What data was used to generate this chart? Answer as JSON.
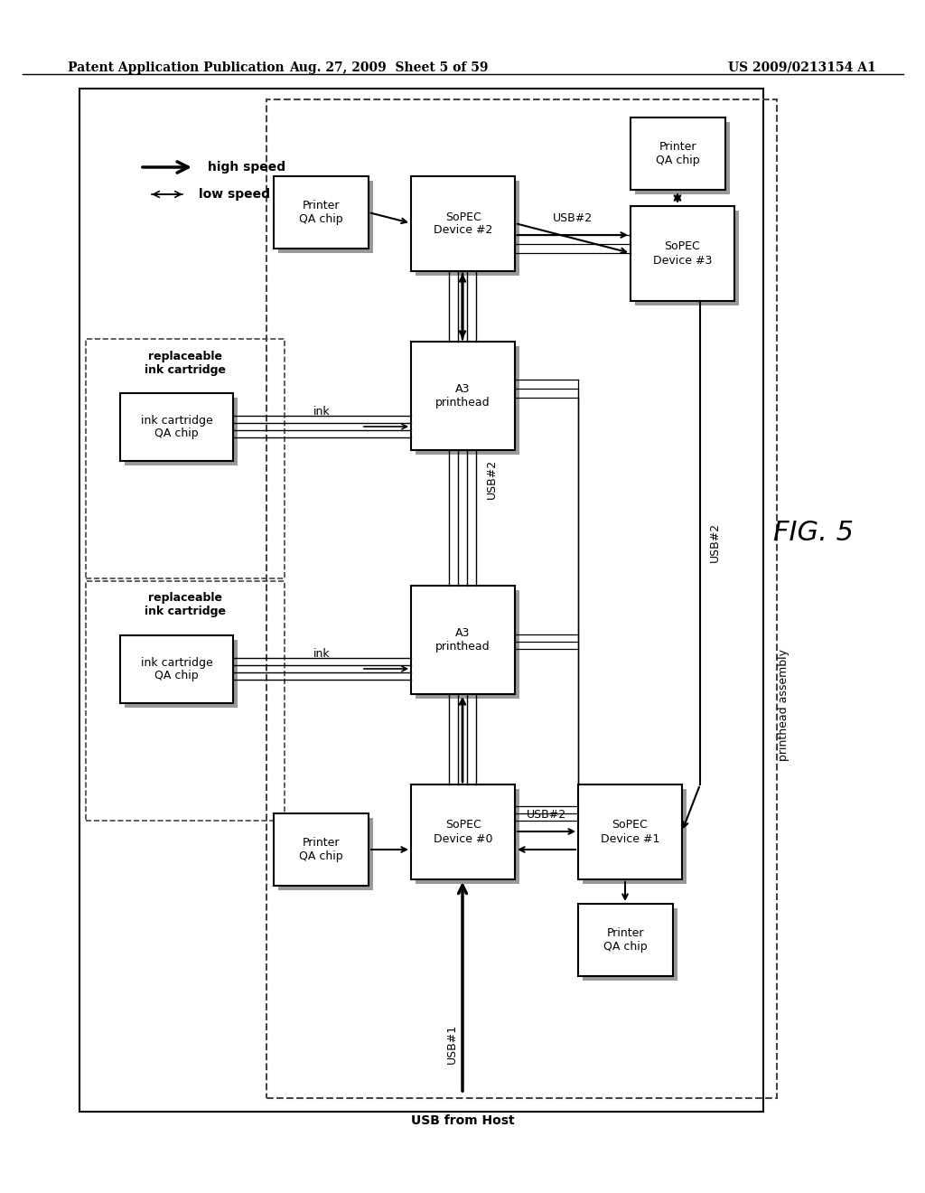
{
  "header_left": "Patent Application Publication",
  "header_center": "Aug. 27, 2009  Sheet 5 of 59",
  "header_right": "US 2009/0213154 A1",
  "fig_label": "FIG. 5",
  "bg_color": "#ffffff"
}
